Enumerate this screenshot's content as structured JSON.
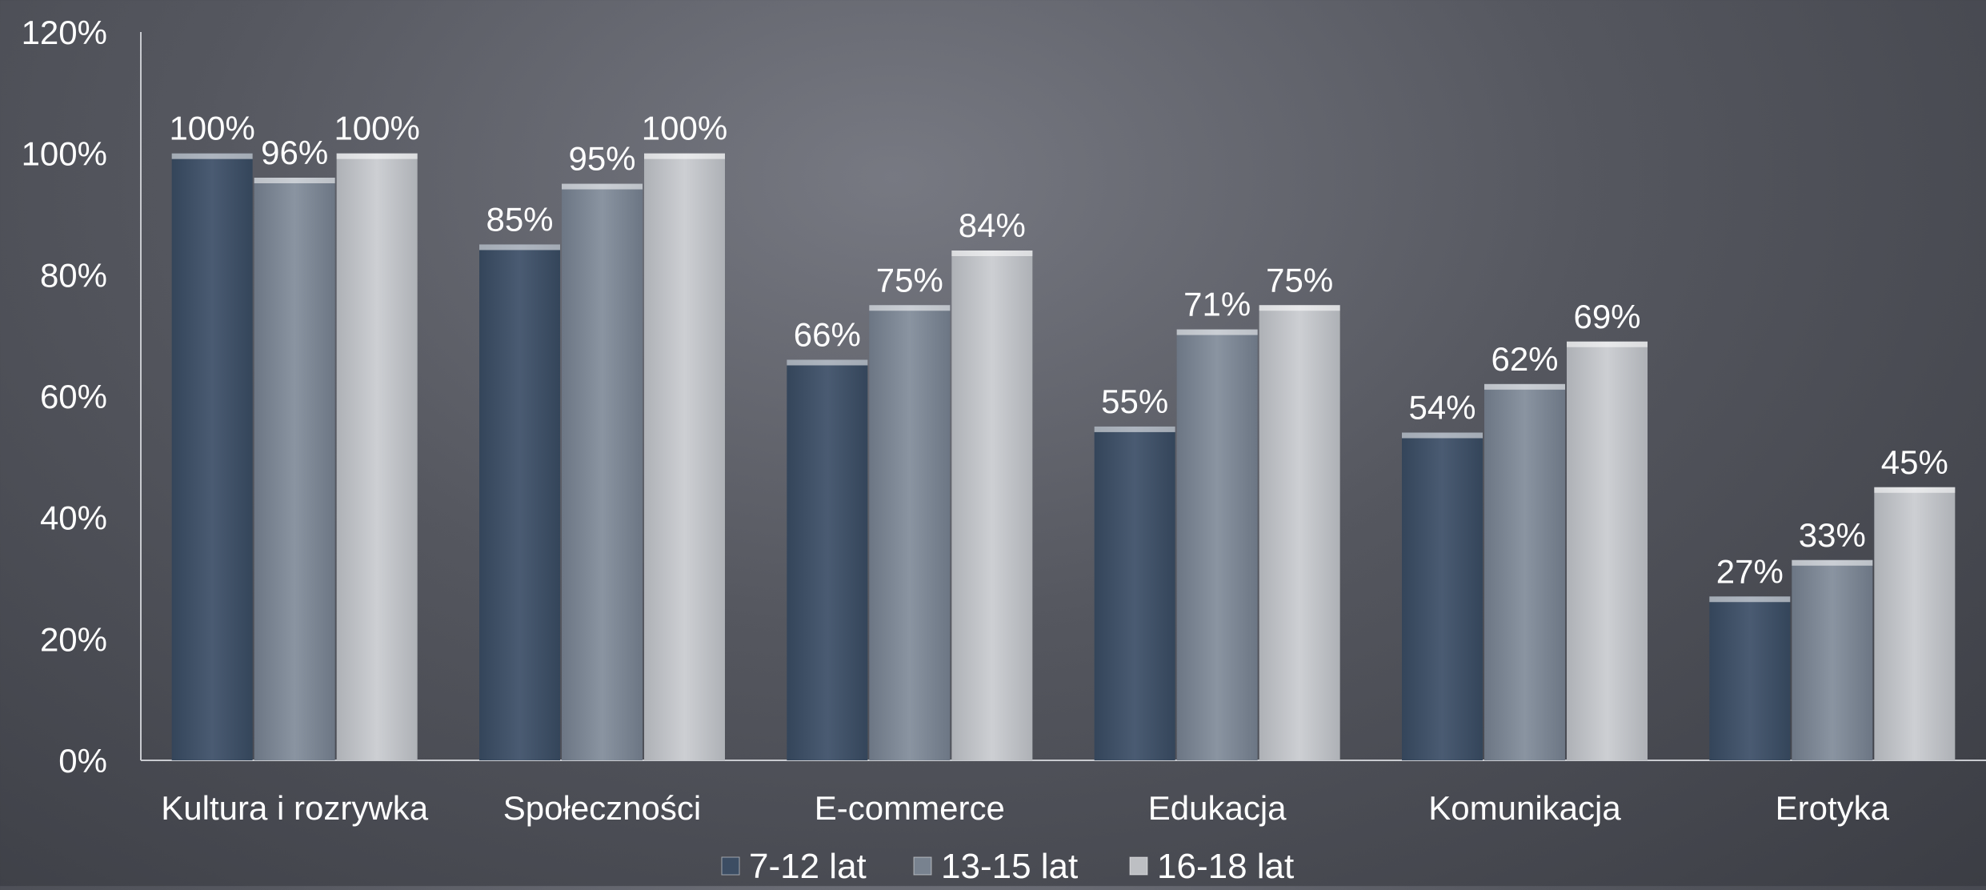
{
  "chart_data": {
    "type": "bar",
    "categories": [
      "Kultura i rozrywka",
      "Społeczności",
      "E-commerce",
      "Edukacja",
      "Komunikacja",
      "Erotyka"
    ],
    "series": [
      {
        "name": "7-12 lat",
        "values": [
          100,
          85,
          66,
          55,
          54,
          27
        ],
        "labels": [
          "100%",
          "85%",
          "66%",
          "55%",
          "54%",
          "27%"
        ],
        "color": "#3c4d63"
      },
      {
        "name": "13-15 lat",
        "values": [
          96,
          95,
          75,
          71,
          62,
          33
        ],
        "labels": [
          "96%",
          "95%",
          "75%",
          "71%",
          "62%",
          "33%"
        ],
        "color": "#78828f"
      },
      {
        "name": "16-18 lat",
        "values": [
          100,
          100,
          84,
          75,
          69,
          45
        ],
        "labels": [
          "100%",
          "100%",
          "84%",
          "75%",
          "69%",
          "45%"
        ],
        "color": "#bdbfc3"
      }
    ],
    "yticks": [
      "0%",
      "20%",
      "40%",
      "60%",
      "80%",
      "100%",
      "120%"
    ],
    "ytick_values": [
      0,
      20,
      40,
      60,
      80,
      100,
      120
    ],
    "ylim": [
      0,
      120
    ],
    "grid": false,
    "legend_position": "bottom",
    "title": "",
    "xlabel": "",
    "ylabel": ""
  },
  "colors": {
    "text": "#ffffff",
    "axis": "#c9cbd0"
  }
}
